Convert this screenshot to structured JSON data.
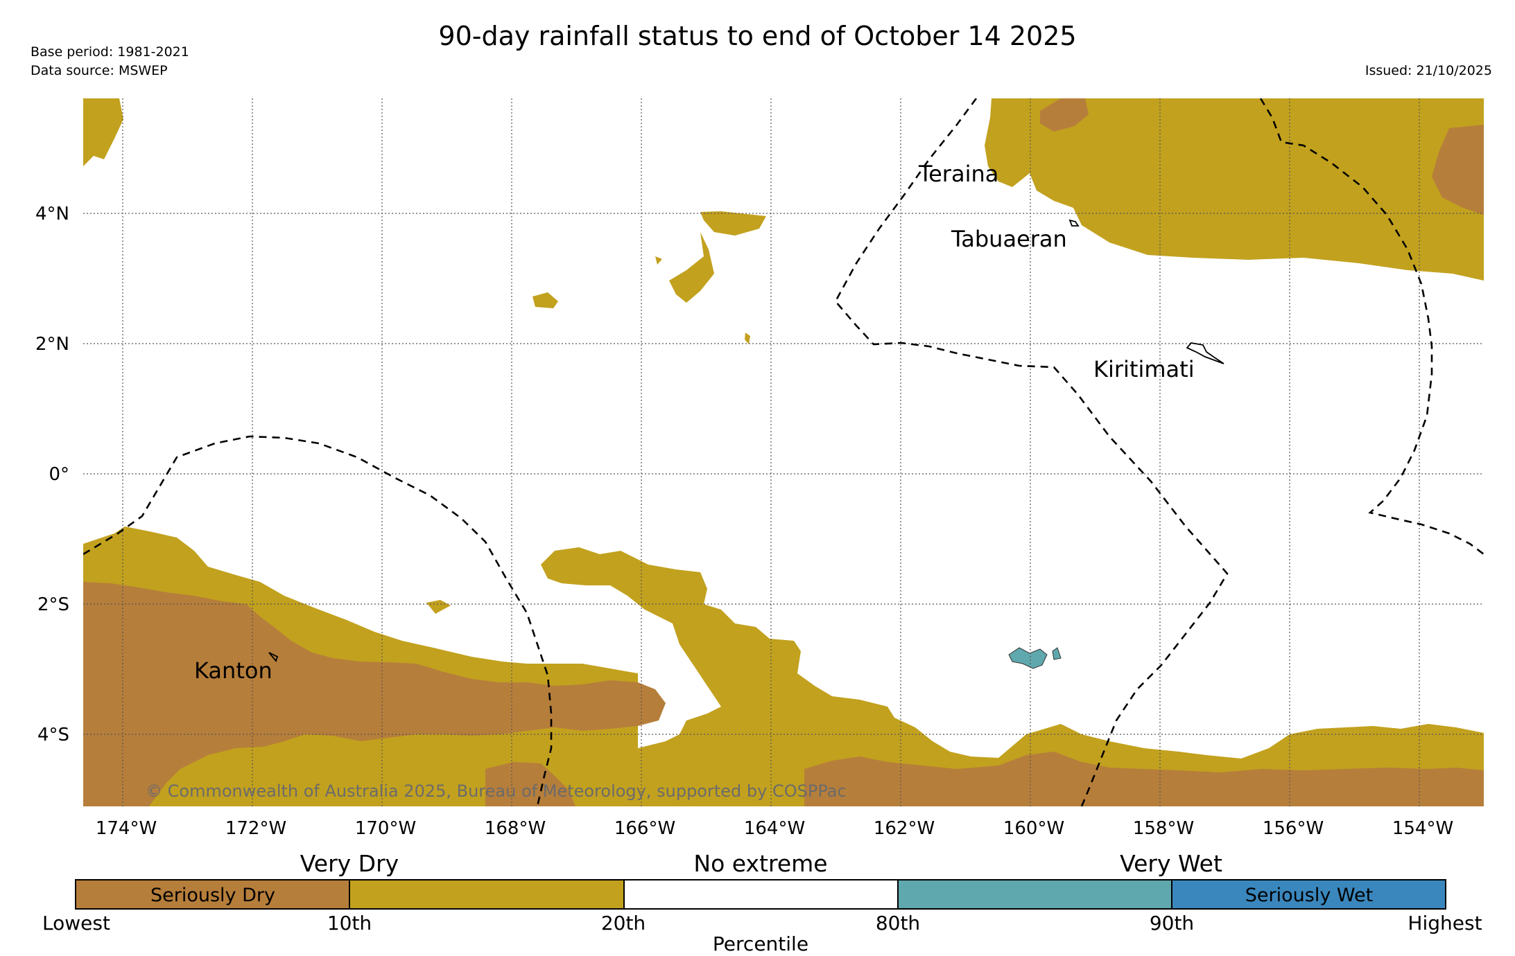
{
  "header": {
    "title": "90-day rainfall status to end of October 14 2025",
    "base_period": "Base period: 1981-2021",
    "data_source": "Data source: MSWEP",
    "issued": "Issued: 21/10/2025"
  },
  "map": {
    "lon_labels": [
      "174°W",
      "172°W",
      "170°W",
      "168°W",
      "166°W",
      "164°W",
      "162°W",
      "160°W",
      "158°W",
      "156°W",
      "154°W"
    ],
    "lat_labels": [
      "4°N",
      "2°N",
      "0°",
      "2°S",
      "4°S"
    ],
    "places": [
      "Teraina",
      "Tabuaeran",
      "Kiritimati",
      "Kanton"
    ],
    "copyright": "© Commonwealth of Australia 2025, Bureau of Meteorology, supported by COSPPac"
  },
  "legend": {
    "groups": [
      "Very Dry",
      "No extreme",
      "Very Wet"
    ],
    "segments": [
      {
        "label": "Seriously Dry",
        "color": "#b67e3b"
      },
      {
        "label": "",
        "color": "#c2a11e"
      },
      {
        "label": "",
        "color": "#ffffff"
      },
      {
        "label": "",
        "color": "#5fa8ae"
      },
      {
        "label": "Seriously Wet",
        "color": "#3a87bd"
      }
    ],
    "ticks": [
      "Lowest",
      "10th",
      "20th",
      "80th",
      "90th",
      "Highest"
    ],
    "axis_title": "Percentile"
  },
  "colors": {
    "seriously_dry": "#b67e3b",
    "very_dry": "#c2a11e",
    "very_wet": "#5fa8ae",
    "seriously_wet": "#3a87bd"
  }
}
